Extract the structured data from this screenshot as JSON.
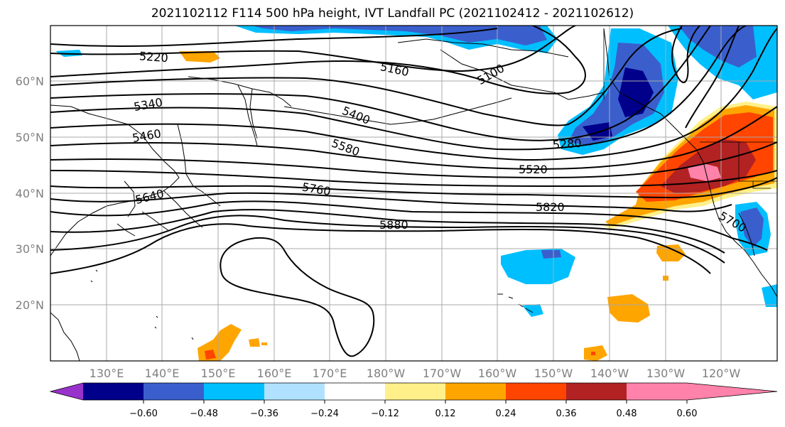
{
  "title": "2021102112 F114 500 hPa height, IVT Landfall PC (2021102412 - 2021102612)",
  "lat_labels": [
    "60°N",
    "50°N",
    "40°N",
    "30°N",
    "20°N"
  ],
  "lon_labels": [
    "130°E",
    "140°E",
    "150°E",
    "160°E",
    "170°E",
    "180°W",
    "170°W",
    "160°W",
    "150°W",
    "140°W",
    "130°W",
    "120°W"
  ],
  "contour_labels": [
    "5220",
    "5160",
    "5100",
    "5340",
    "5400",
    "5460",
    "5580",
    "5280",
    "5520",
    "5640",
    "5760",
    "5820",
    "5880",
    "5700"
  ],
  "colorbar": {
    "tick_labels": [
      "−0.60",
      "−0.48",
      "−0.36",
      "−0.24",
      "−0.12",
      "0.12",
      "0.24",
      "0.36",
      "0.48",
      "0.60"
    ],
    "colors": [
      "#9932cc",
      "#00008b",
      "#3a5fcd",
      "#00bfff",
      "#b0e2ff",
      "#ffffff",
      "#fff08a",
      "#ffa500",
      "#ff4500",
      "#b22222",
      "#ff82ab"
    ]
  },
  "shading_colors": {
    "dark_navy": "#00008b",
    "royal_blue": "#3a5fcd",
    "sky_blue": "#00bfff",
    "light_blue": "#b0e2ff",
    "yellow": "#fff08a",
    "orange": "#ffa500",
    "red_orange": "#ff4500",
    "dark_red": "#b22222",
    "pink": "#ff82ab"
  }
}
